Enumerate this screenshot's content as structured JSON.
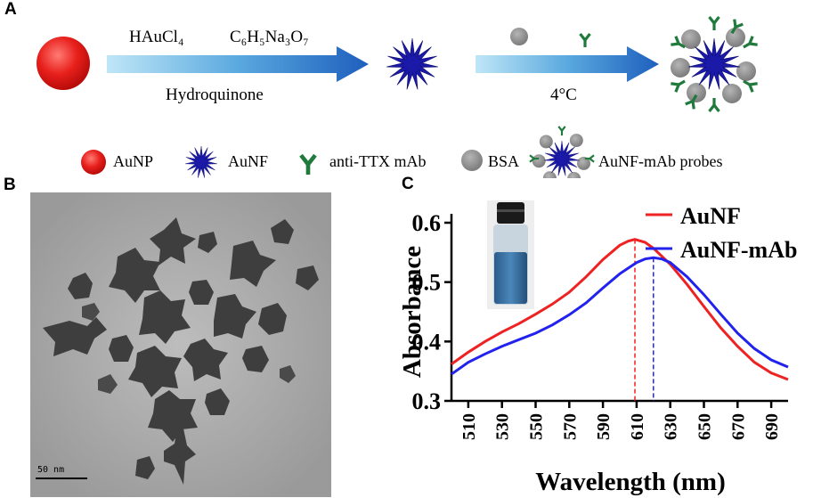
{
  "panels": {
    "a": "A",
    "b": "B",
    "c": "C"
  },
  "synthesis": {
    "reagent_1": "HAuCl₄",
    "reagent_2": "C₆H₅Na₃O₇",
    "reducer": "Hydroquinone",
    "conjugation_temp": "4°C"
  },
  "legend": {
    "aunp": "AuNP",
    "aunf": "AuNF",
    "mab": "anti-TTX mAb",
    "bsa": "BSA",
    "probe": "AuNF-mAb probes"
  },
  "tem": {
    "scale_label": "50 nm"
  },
  "colors": {
    "aunp": "#e8201c",
    "aunf": "#1b1aa8",
    "mab": "#1f7a3c",
    "bsa": "#8a8a8a",
    "arrow": "#2a7fcf"
  },
  "chart_data": {
    "type": "line",
    "xlabel": "Wavelength (nm)",
    "ylabel": "Absorbance",
    "xlim": [
      500,
      700
    ],
    "ylim": [
      0.3,
      0.6
    ],
    "x_ticks": [
      510,
      530,
      550,
      570,
      590,
      610,
      630,
      650,
      670,
      690
    ],
    "y_ticks": [
      0.3,
      0.4,
      0.5,
      0.6
    ],
    "y_tick_labels": [
      "0.3",
      "0.4",
      "0.5",
      "0.6"
    ],
    "legend_position": "top-right",
    "series": [
      {
        "name": "AuNF",
        "color": "#ee2222",
        "peak_x": 609,
        "x": [
          500,
          510,
          520,
          530,
          540,
          550,
          560,
          570,
          580,
          590,
          600,
          605,
          609,
          615,
          620,
          630,
          640,
          650,
          660,
          670,
          680,
          690,
          700
        ],
        "y": [
          0.362,
          0.382,
          0.4,
          0.416,
          0.43,
          0.446,
          0.463,
          0.483,
          0.509,
          0.538,
          0.562,
          0.569,
          0.572,
          0.567,
          0.557,
          0.53,
          0.496,
          0.459,
          0.423,
          0.392,
          0.365,
          0.347,
          0.336
        ]
      },
      {
        "name": "AuNF-mAb",
        "color": "#2222ee",
        "peak_x": 620,
        "x": [
          500,
          510,
          520,
          530,
          540,
          550,
          560,
          570,
          580,
          590,
          600,
          610,
          615,
          620,
          625,
          630,
          640,
          650,
          660,
          670,
          680,
          690,
          700
        ],
        "y": [
          0.345,
          0.365,
          0.379,
          0.392,
          0.403,
          0.414,
          0.428,
          0.445,
          0.465,
          0.49,
          0.514,
          0.533,
          0.539,
          0.541,
          0.539,
          0.533,
          0.509,
          0.479,
          0.446,
          0.414,
          0.388,
          0.369,
          0.357
        ]
      }
    ]
  }
}
